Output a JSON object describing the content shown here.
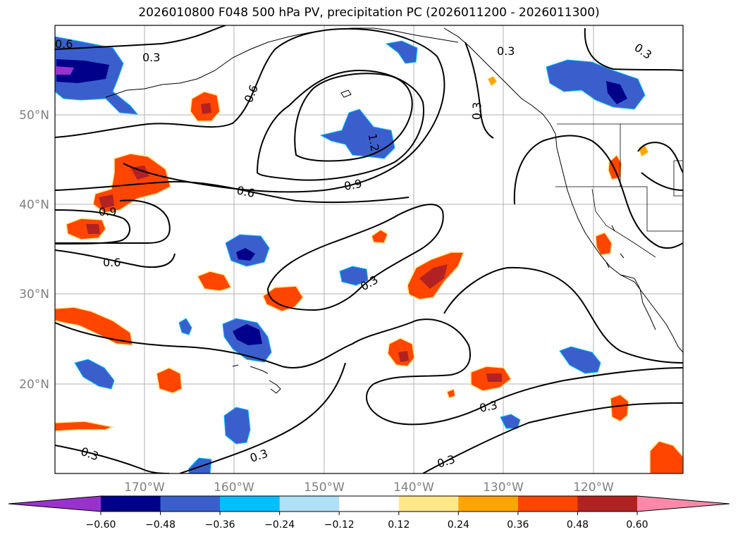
{
  "title": "2026010800 F048 500 hPa PV, precipitation PC (2026011200 - 2026011300)",
  "latitude_labels": [
    "50°N",
    "40°N",
    "30°N",
    "20°N"
  ],
  "longitude_labels": [
    "170°W",
    "160°W",
    "150°W",
    "140°W",
    "130°W",
    "120°W"
  ],
  "contour_labels": [
    "0.3",
    "0.3",
    "0.3",
    "0.6",
    "0.6",
    "0.6",
    "0.9",
    "0.9",
    "1.2",
    "0.3",
    "0.3",
    "0.3",
    "0.3",
    "0.3",
    "0.3",
    "0.6"
  ],
  "colorbar": {
    "ticks": [
      "−0.60",
      "−0.48",
      "−0.36",
      "−0.24",
      "−0.12",
      "0.12",
      "0.24",
      "0.36",
      "0.48",
      "0.60"
    ],
    "colors": [
      "#9932cc",
      "#00008b",
      "#3a5fcd",
      "#00bfff",
      "#b0e0f8",
      "#ffffff",
      "#ffe88a",
      "#ffa500",
      "#ff4500",
      "#b22222",
      "#ff88aa"
    ]
  },
  "palette": {
    "neg_deep": "#00008b",
    "neg_mid": "#3a5fcd",
    "neg_light": "#00bfff",
    "neg_faint": "#b0e0f8",
    "pos_faint": "#ffe88a",
    "pos_light": "#ffa500",
    "pos_mid": "#ff4500",
    "pos_deep": "#b22222",
    "neg_max": "#9932cc"
  }
}
